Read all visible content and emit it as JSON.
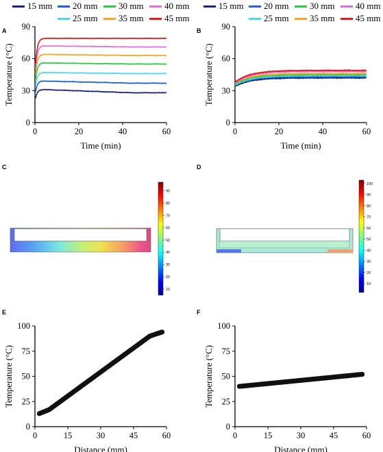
{
  "panel_labels": [
    "A",
    "B",
    "C",
    "D",
    "E",
    "F"
  ],
  "legend": {
    "A": [
      {
        "name": "15 mm",
        "color": "#1a237e"
      },
      {
        "name": "20 mm",
        "color": "#1e63d0"
      },
      {
        "name": "30 mm",
        "color": "#2ecc40"
      },
      {
        "name": "40 mm",
        "color": "#e070e0"
      },
      {
        "name": "25 mm",
        "color": "#4dd8f0"
      },
      {
        "name": "35 mm",
        "color": "#f5a623"
      },
      {
        "name": "45 mm",
        "color": "#e02020"
      }
    ],
    "B": [
      {
        "name": "15 mm",
        "color": "#1a237e"
      },
      {
        "name": "20 mm",
        "color": "#1e63d0"
      },
      {
        "name": "30 mm",
        "color": "#2ecc40"
      },
      {
        "name": "40 mm",
        "color": "#e070e0"
      },
      {
        "name": "25 mm",
        "color": "#4dd8f0"
      },
      {
        "name": "35 mm",
        "color": "#f5a623"
      },
      {
        "name": "45 mm",
        "color": "#e02020"
      }
    ]
  },
  "chart_data": [
    {
      "panel": "A",
      "type": "line",
      "xlabel": "Time (min)",
      "ylabel": "Temperature (°C)",
      "xlim": [
        0,
        60
      ],
      "ylim": [
        0,
        90
      ],
      "xticks": [
        "0",
        "20",
        "40",
        "60"
      ],
      "yticks": [
        "0",
        "30",
        "60",
        "90"
      ],
      "series": [
        {
          "name": "15 mm",
          "color": "#1a237e",
          "start": 20,
          "peak": 31,
          "end": 28
        },
        {
          "name": "20 mm",
          "color": "#1e63d0",
          "start": 25,
          "peak": 39,
          "end": 37
        },
        {
          "name": "25 mm",
          "color": "#4dd8f0",
          "start": 30,
          "peak": 47,
          "end": 46
        },
        {
          "name": "30 mm",
          "color": "#2ecc40",
          "start": 34,
          "peak": 56,
          "end": 55
        },
        {
          "name": "35 mm",
          "color": "#f5a623",
          "start": 38,
          "peak": 64,
          "end": 63
        },
        {
          "name": "40 mm",
          "color": "#e070e0",
          "start": 42,
          "peak": 72,
          "end": 71
        },
        {
          "name": "45 mm",
          "color": "#e02020",
          "start": 46,
          "peak": 79,
          "end": 79
        }
      ]
    },
    {
      "panel": "B",
      "type": "line",
      "xlabel": "Time (min)",
      "ylabel": "Temperature (°C)",
      "xlim": [
        0,
        60
      ],
      "ylim": [
        0,
        90
      ],
      "xticks": [
        "0",
        "20",
        "40",
        "60"
      ],
      "yticks": [
        "0",
        "30",
        "60",
        "90"
      ],
      "series": [
        {
          "name": "15 mm",
          "color": "#1a237e",
          "start": 34,
          "end": 42
        },
        {
          "name": "20 mm",
          "color": "#1e63d0",
          "start": 35,
          "end": 43
        },
        {
          "name": "25 mm",
          "color": "#4dd8f0",
          "start": 35,
          "end": 44
        },
        {
          "name": "30 mm",
          "color": "#2ecc40",
          "start": 36,
          "end": 45
        },
        {
          "name": "35 mm",
          "color": "#f5a623",
          "start": 37,
          "end": 46
        },
        {
          "name": "40 mm",
          "color": "#e070e0",
          "start": 37,
          "end": 48
        },
        {
          "name": "45 mm",
          "color": "#e02020",
          "start": 38,
          "end": 49
        }
      ]
    },
    {
      "panel": "C",
      "type": "heatmap",
      "colorbar_ticks": [
        "10",
        "20",
        "30",
        "40",
        "50",
        "60",
        "70",
        "80",
        "90"
      ],
      "colorbar_range": [
        5,
        97
      ]
    },
    {
      "panel": "D",
      "type": "heatmap",
      "colorbar_ticks": [
        "10",
        "20",
        "30",
        "40",
        "50",
        "60",
        "70",
        "80",
        "90",
        "100"
      ],
      "colorbar_range": [
        2,
        103
      ]
    },
    {
      "panel": "E",
      "type": "scatter",
      "xlabel": "Distance (mm)",
      "ylabel": "Temperature (°C)",
      "xlim": [
        0,
        60
      ],
      "ylim": [
        0,
        100
      ],
      "xticks": [
        "0",
        "15",
        "30",
        "45",
        "60"
      ],
      "yticks": [
        "0",
        "25",
        "50",
        "75",
        "100"
      ],
      "x_range": [
        2,
        58
      ],
      "y_start": 13,
      "y_end": 94
    },
    {
      "panel": "F",
      "type": "scatter",
      "xlabel": "Distance (mm)",
      "ylabel": "Temperature (°C)",
      "xlim": [
        0,
        60
      ],
      "ylim": [
        0,
        100
      ],
      "xticks": [
        "0",
        "15",
        "30",
        "45",
        "60"
      ],
      "yticks": [
        "0",
        "25",
        "50",
        "75",
        "100"
      ],
      "x_range": [
        2,
        58
      ],
      "y_start": 40,
      "y_end": 52
    }
  ]
}
